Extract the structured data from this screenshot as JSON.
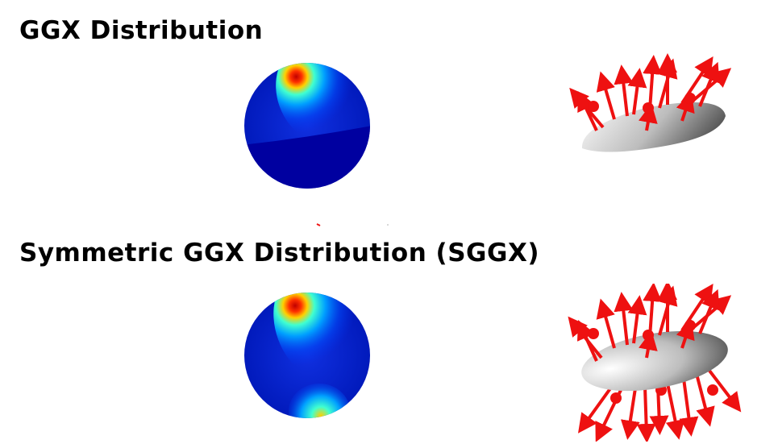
{
  "sections": [
    {
      "title": "GGX Distribution",
      "lobe": "upper-hemisphere",
      "surface": "flat-ellipsoid-top-half",
      "normals": "upward-only"
    },
    {
      "title": "Symmetric GGX Distribution (SGGX)",
      "lobe": "symmetric-both-hemispheres",
      "surface": "full-ellipsoid",
      "normals": "upward-and-downward"
    }
  ],
  "colors": {
    "arrow": "#ee1111",
    "sphere_base": "#0000a8",
    "sphere_hot": "#cc0000",
    "background": "#ffffff"
  }
}
